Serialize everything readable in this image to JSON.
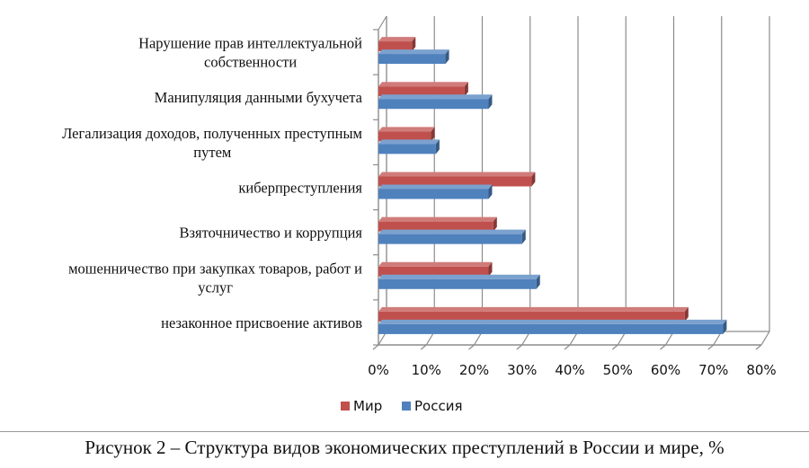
{
  "chart_data": {
    "type": "bar",
    "orientation": "horizontal",
    "style": "3d",
    "categories": [
      [
        "Нарушение прав интеллектуальной",
        "собственности"
      ],
      [
        "Манипуляция данными бухучета"
      ],
      [
        "Легализация доходов, полученных преступным",
        "путем"
      ],
      [
        "киберпреступления"
      ],
      [
        "Взяточничество и коррупция"
      ],
      [
        "мошенничество при закупках товаров, работ и",
        "услуг"
      ],
      [
        "незаконное присвоение активов"
      ]
    ],
    "series": [
      {
        "name": "Мир",
        "color": "#c0504d",
        "values": [
          7,
          18,
          11,
          32,
          24,
          23,
          64
        ]
      },
      {
        "name": "Россия",
        "color": "#4f81bd",
        "values": [
          14,
          23,
          12,
          23,
          30,
          33,
          72
        ]
      }
    ],
    "xlim": [
      0,
      80
    ],
    "x_ticks": [
      "0%",
      "10%",
      "20%",
      "30%",
      "40%",
      "50%",
      "60%",
      "70%",
      "80%"
    ],
    "grid": true,
    "legend_position": "bottom"
  },
  "caption": "Рисунок 2 – Структура видов экономических преступлений в России и мире, %"
}
